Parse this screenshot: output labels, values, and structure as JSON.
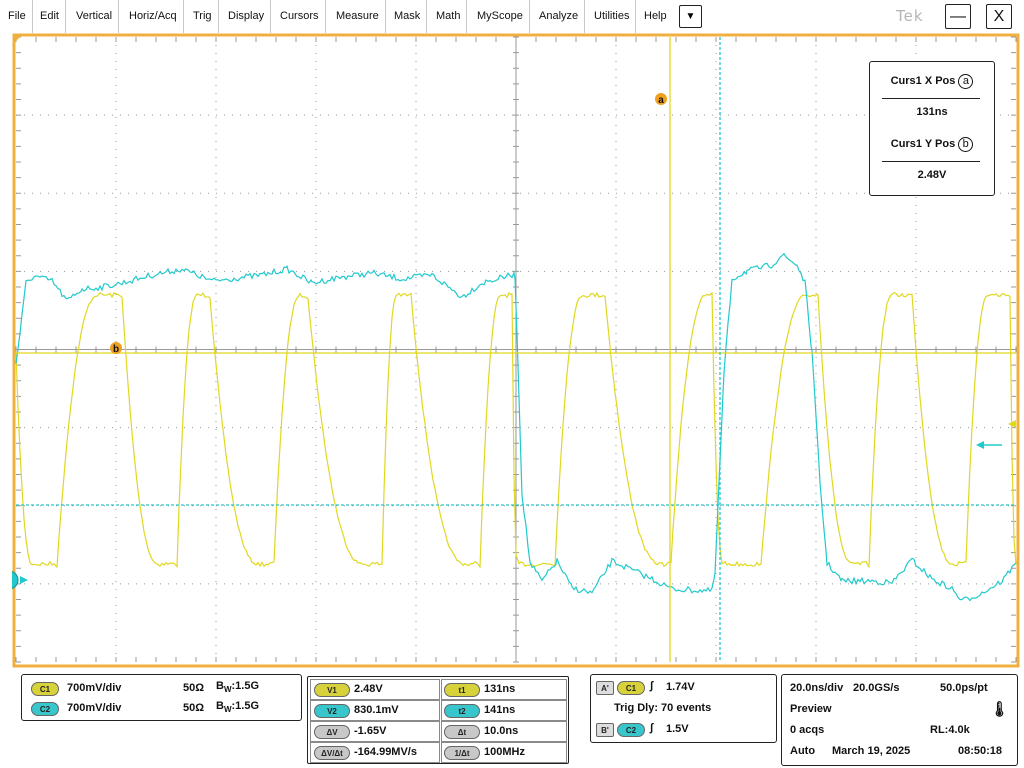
{
  "menu": {
    "items": [
      "File",
      "Edit",
      "Vertical",
      "Horiz/Acq",
      "Trig",
      "Display",
      "Cursors",
      "Measure",
      "Mask",
      "Math",
      "MyScope",
      "Analyze",
      "Utilities",
      "Help"
    ],
    "dropdown_glyph": "▼",
    "brand": "Tek",
    "minimize": "—",
    "close": "X"
  },
  "colors": {
    "ch1": "#e0d820",
    "ch2": "#21c9cc",
    "frame": "#f0b040",
    "grid": "#999999",
    "cursor_marker": "#f0a020"
  },
  "screen": {
    "cursor_a_label": "a",
    "cursor_b_label": "b",
    "ch2_marker": "2",
    "cursor_readout": {
      "x_title": "Curs1 X Pos",
      "x_sym": "a",
      "x_value": "131ns",
      "y_title": "Curs1 Y Pos",
      "y_sym": "b",
      "y_value": "2.48V"
    }
  },
  "channels": [
    {
      "tag": "C1",
      "scale": "700mV/div",
      "impedance": "50Ω",
      "bw_prefix": "B",
      "bw_sub": "W",
      "bw": ":1.5G"
    },
    {
      "tag": "C2",
      "scale": "700mV/div",
      "impedance": "50Ω",
      "bw_prefix": "B",
      "bw_sub": "W",
      "bw": ":1.5G"
    }
  ],
  "cursors": {
    "rows": [
      {
        "tag_l": "V1",
        "val_l": "2.48V",
        "tag_r": "t1",
        "val_r": "131ns"
      },
      {
        "tag_l": "V2",
        "val_l": "830.1mV",
        "tag_r": "t2",
        "val_r": "141ns"
      },
      {
        "tag_l": "ΔV",
        "val_l": "-1.65V",
        "tag_r": "Δt",
        "val_r": "10.0ns"
      },
      {
        "tag_l": "ΔV/Δt",
        "val_l": "-164.99MV/s",
        "tag_r": "1/Δt",
        "val_r": "100MHz"
      }
    ]
  },
  "trigger": {
    "a_tag": "A'",
    "a_ch": "C1",
    "a_level": "1.74V",
    "delay_text": "Trig Dly: 70 events",
    "b_tag": "B'",
    "b_ch": "C2",
    "b_level": "1.5V",
    "edge_glyph": "∫"
  },
  "acquisition": {
    "timebase": "20.0ns/div",
    "sample_rate": "20.0GS/s",
    "resolution": "50.0ps/pt",
    "mode": "Preview",
    "acqs": "0 acqs",
    "record_length": "RL:4.0k",
    "trigger_mode": "Auto",
    "date": "March 19, 2025",
    "time": "08:50:18"
  }
}
